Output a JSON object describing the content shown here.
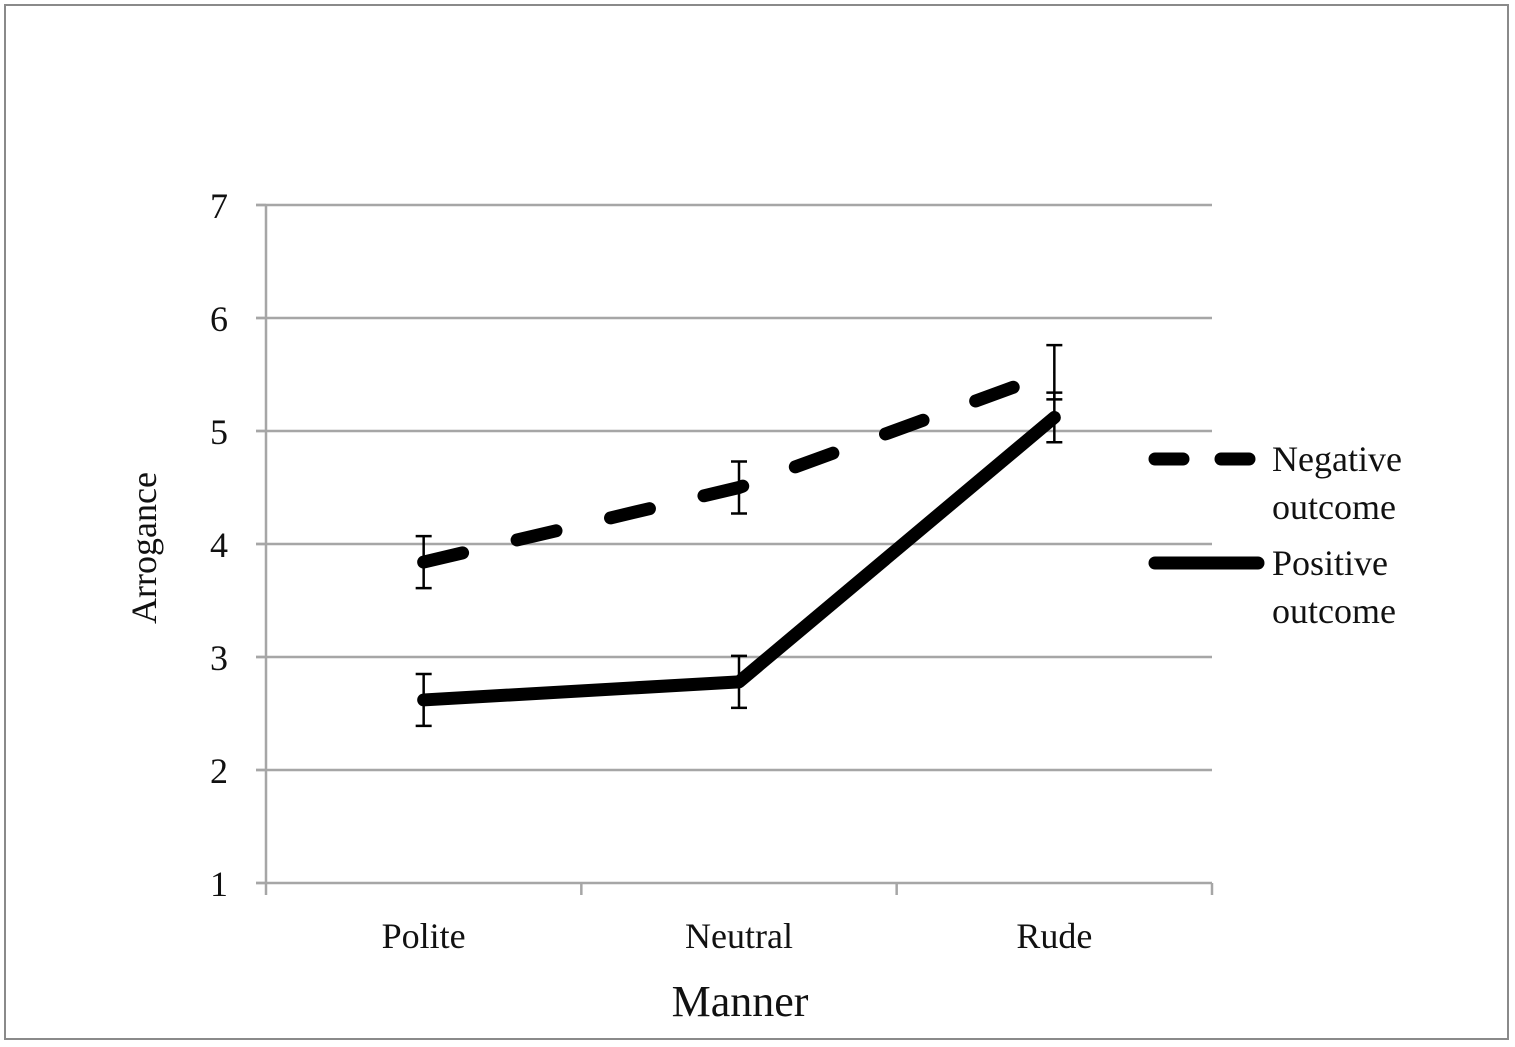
{
  "chart_data": {
    "type": "line",
    "title": "",
    "xlabel": "Manner",
    "ylabel": "Arrogance",
    "categories": [
      "Polite",
      "Neutral",
      "Rude"
    ],
    "ylim": [
      1,
      7
    ],
    "yticks": [
      "1",
      "2",
      "3",
      "4",
      "5",
      "6",
      "7"
    ],
    "grid": true,
    "legend_position": "right",
    "series": [
      {
        "name": "Negative outcome",
        "name_lines": [
          "Negative",
          "outcome"
        ],
        "style": "dashed",
        "color": "#000000",
        "values": [
          3.84,
          4.5,
          5.52
        ],
        "error": [
          0.23,
          0.23,
          0.24
        ]
      },
      {
        "name": "Positive outcome",
        "name_lines": [
          "Positive",
          "outcome"
        ],
        "style": "solid",
        "color": "#000000",
        "values": [
          2.62,
          2.78,
          5.12
        ],
        "error": [
          0.23,
          0.23,
          0.22
        ]
      }
    ]
  }
}
